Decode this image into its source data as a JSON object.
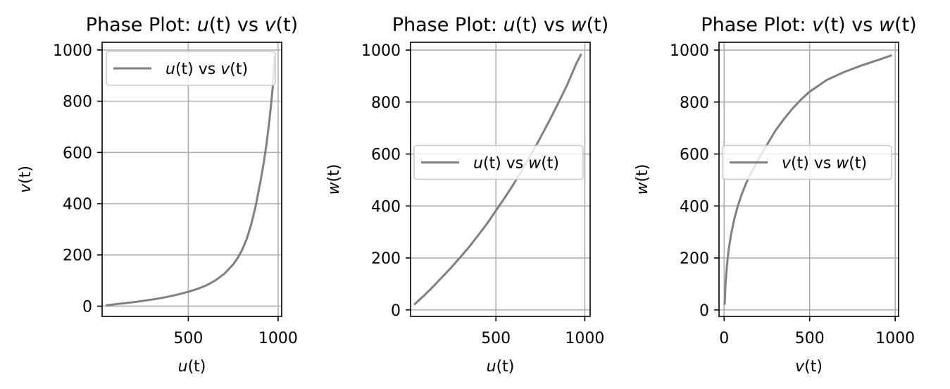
{
  "colors": {
    "series": "#808080"
  },
  "chart_data": [
    {
      "type": "line",
      "title": {
        "prefix": "Phase Plot: ",
        "a": "u",
        "mid": " vs ",
        "b": "v",
        "arg": "(t)"
      },
      "xlabel": {
        "var": "u",
        "arg": "(t)"
      },
      "ylabel": {
        "var": "v",
        "arg": "(t)"
      },
      "xlim": [
        20,
        1020
      ],
      "ylim": [
        -40,
        1030
      ],
      "xticks": [
        500,
        1000
      ],
      "yticks": [
        0,
        200,
        400,
        600,
        800,
        1000
      ],
      "grid": true,
      "legend": {
        "loc": "upper-left",
        "a": "u",
        "mid": " vs ",
        "b": "v",
        "arg": "(t)"
      },
      "series": [
        {
          "name": "u(t) vs v(t)",
          "x": [
            40,
            100,
            150,
            200,
            250,
            300,
            350,
            400,
            450,
            500,
            550,
            600,
            650,
            700,
            750,
            775,
            800,
            825,
            850,
            875,
            900,
            920,
            935,
            950,
            960,
            970,
            975,
            980
          ],
          "y": [
            3,
            8,
            12,
            16,
            21,
            26,
            32,
            39,
            47,
            56,
            67,
            81,
            100,
            126,
            163,
            188,
            220,
            262,
            318,
            390,
            480,
            560,
            630,
            715,
            780,
            855,
            910,
            975
          ]
        }
      ]
    },
    {
      "type": "line",
      "title": {
        "prefix": "Phase Plot: ",
        "a": "u",
        "mid": " vs ",
        "b": "w",
        "arg": "(t)"
      },
      "xlabel": {
        "var": "u",
        "arg": "(t)"
      },
      "ylabel": {
        "var": "w",
        "arg": "(t)"
      },
      "xlim": [
        20,
        1030
      ],
      "ylim": [
        -25,
        1030
      ],
      "xticks": [
        500,
        1000
      ],
      "yticks": [
        0,
        200,
        400,
        600,
        800,
        1000
      ],
      "grid": true,
      "legend": {
        "loc": "center-right",
        "a": "u",
        "mid": " vs ",
        "b": "w",
        "arg": "(t)"
      },
      "series": [
        {
          "name": "u(t) vs w(t)",
          "x": [
            40,
            100,
            150,
            200,
            250,
            300,
            350,
            400,
            450,
            500,
            550,
            600,
            650,
            700,
            750,
            800,
            850,
            900,
            950,
            980
          ],
          "y": [
            20,
            58,
            92,
            128,
            164,
            203,
            243,
            287,
            332,
            382,
            432,
            485,
            542,
            600,
            663,
            727,
            795,
            865,
            945,
            985
          ]
        }
      ]
    },
    {
      "type": "line",
      "title": {
        "prefix": "Phase Plot: ",
        "a": "v",
        "mid": " vs ",
        "b": "w",
        "arg": "(t)"
      },
      "xlabel": {
        "var": "v",
        "arg": "(t)"
      },
      "ylabel": {
        "var": "w",
        "arg": "(t)"
      },
      "xlim": [
        -30,
        1020
      ],
      "ylim": [
        -25,
        1030
      ],
      "xticks": [
        0,
        500,
        1000
      ],
      "yticks": [
        0,
        200,
        400,
        600,
        800,
        1000
      ],
      "grid": true,
      "legend": {
        "loc": "center-right",
        "a": "v",
        "mid": " vs ",
        "b": "w",
        "arg": "(t)"
      },
      "series": [
        {
          "name": "v(t) vs w(t)",
          "x": [
            3,
            8,
            15,
            25,
            40,
            60,
            80,
            100,
            130,
            160,
            200,
            250,
            300,
            350,
            400,
            450,
            500,
            600,
            700,
            800,
            900,
            980
          ],
          "y": [
            20,
            100,
            160,
            225,
            290,
            352,
            400,
            440,
            490,
            530,
            580,
            635,
            690,
            735,
            775,
            810,
            840,
            885,
            915,
            940,
            962,
            980
          ]
        }
      ]
    }
  ]
}
